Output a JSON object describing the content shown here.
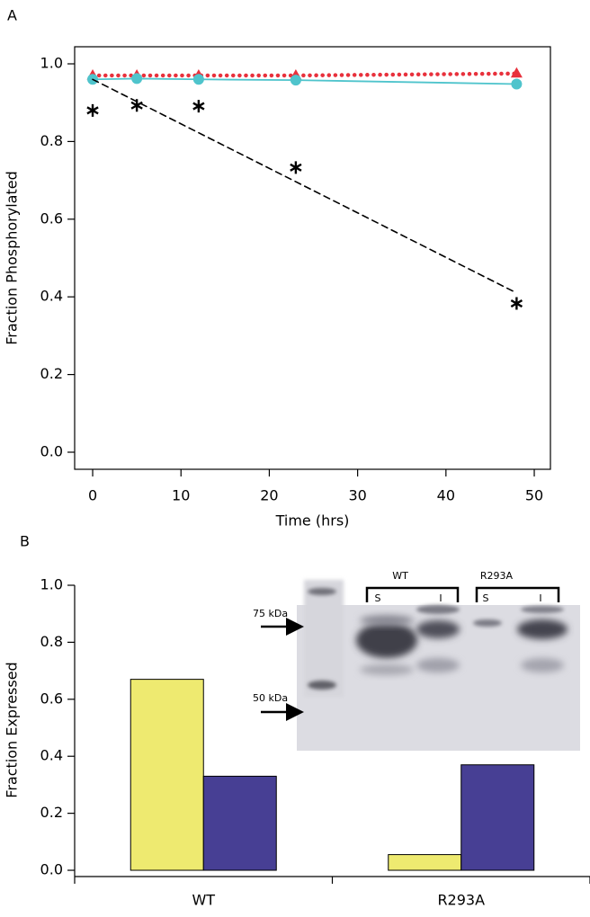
{
  "chart_data": [
    {
      "type": "line",
      "panel_label": "A",
      "x_label": "Time (hrs)",
      "y_label": "Fraction Phosphorylated",
      "x": [
        0,
        5,
        12,
        23,
        48
      ],
      "xlim": [
        -2.04,
        51.83
      ],
      "xticks": [
        0,
        10,
        20,
        30,
        40,
        50
      ],
      "ylim": [
        -0.044,
        1.044
      ],
      "yticks": [
        {
          "value": 0,
          "label": "0.0"
        },
        0.2,
        0.4,
        0.6,
        0.8,
        {
          "value": 1,
          "label": "1.0"
        }
      ],
      "series": [
        {
          "color": "#e8313c",
          "marker": "triangle",
          "line_style": "dotted",
          "values": [
            0.97,
            0.97,
            0.97,
            0.97,
            0.975
          ]
        },
        {
          "color": "#4fc4cc",
          "marker": "circle",
          "line_style": "solid",
          "values": [
            0.96,
            0.962,
            0.96,
            0.958,
            0.948
          ]
        },
        {
          "color": "#000000",
          "marker": "asterisk",
          "line_style": "none",
          "values": [
            0.88,
            0.893,
            0.891,
            0.733,
            0.383
          ]
        },
        {
          "color": "#000000",
          "marker": "none",
          "line_style": "dashed",
          "x": [
            0,
            48
          ],
          "values": [
            0.96,
            0.41
          ]
        }
      ]
    },
    {
      "type": "bar",
      "panel_label": "B",
      "y_label": "Fraction Expressed",
      "categories": [
        "WT",
        "R293A"
      ],
      "ylim": [
        -0.022,
        1.0
      ],
      "yticks": [
        {
          "value": 0,
          "label": "0.0"
        },
        0.2,
        0.4,
        0.6,
        0.8,
        {
          "value": 1,
          "label": "1.0"
        }
      ],
      "series": [
        {
          "color": "#eeea70",
          "values": [
            0.67,
            0.055
          ]
        },
        {
          "color": "#473f94",
          "values": [
            0.33,
            0.37
          ]
        }
      ],
      "inset": {
        "lanes": [
          {
            "name": "WT",
            "fractions": [
              "S",
              "I"
            ]
          },
          {
            "name": "R293A",
            "fractions": [
              "S",
              "I"
            ]
          }
        ],
        "markers": [
          "75 kDa",
          "50 kDa"
        ]
      }
    }
  ]
}
